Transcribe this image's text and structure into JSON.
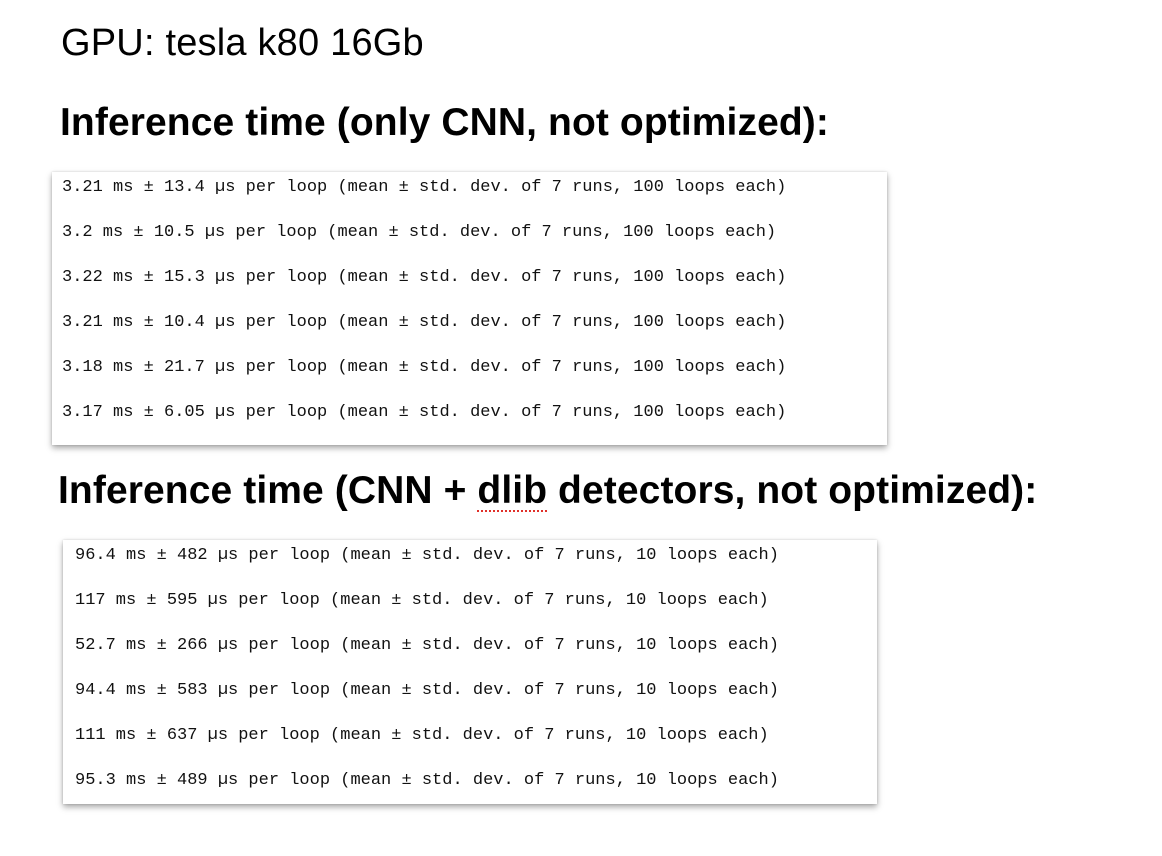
{
  "gpu_title": "GPU: tesla k80 16Gb",
  "section1": {
    "heading_prefix": "Inference time (only CNN, not optimized):",
    "lines": [
      "3.21 ms ± 13.4 µs per loop (mean ± std. dev. of 7 runs, 100 loops each)",
      "3.2 ms ± 10.5 µs per loop (mean ± std. dev. of 7 runs, 100 loops each)",
      "3.22 ms ± 15.3 µs per loop (mean ± std. dev. of 7 runs, 100 loops each)",
      "3.21 ms ± 10.4 µs per loop (mean ± std. dev. of 7 runs, 100 loops each)",
      "3.18 ms ± 21.7 µs per loop (mean ± std. dev. of 7 runs, 100 loops each)",
      "3.17 ms ± 6.05 µs per loop (mean ± std. dev. of 7 runs, 100 loops each)"
    ]
  },
  "section2": {
    "heading_before": "Inference time (CNN + ",
    "heading_underlined": "dlib",
    "heading_after": " detectors, not optimized):",
    "lines": [
      "96.4 ms ± 482 µs per loop (mean ± std. dev. of 7 runs, 10 loops each)",
      "117 ms ± 595 µs per loop (mean ± std. dev. of 7 runs, 10 loops each)",
      "52.7 ms ± 266 µs per loop (mean ± std. dev. of 7 runs, 10 loops each)",
      "94.4 ms ± 583 µs per loop (mean ± std. dev. of 7 runs, 10 loops each)",
      "111 ms ± 637 µs per loop (mean ± std. dev. of 7 runs, 10 loops each)",
      "95.3 ms ± 489 µs per loop (mean ± std. dev. of 7 runs, 10 loops each)"
    ]
  },
  "colors": {
    "spellcheck_underline": "#e0302a"
  }
}
